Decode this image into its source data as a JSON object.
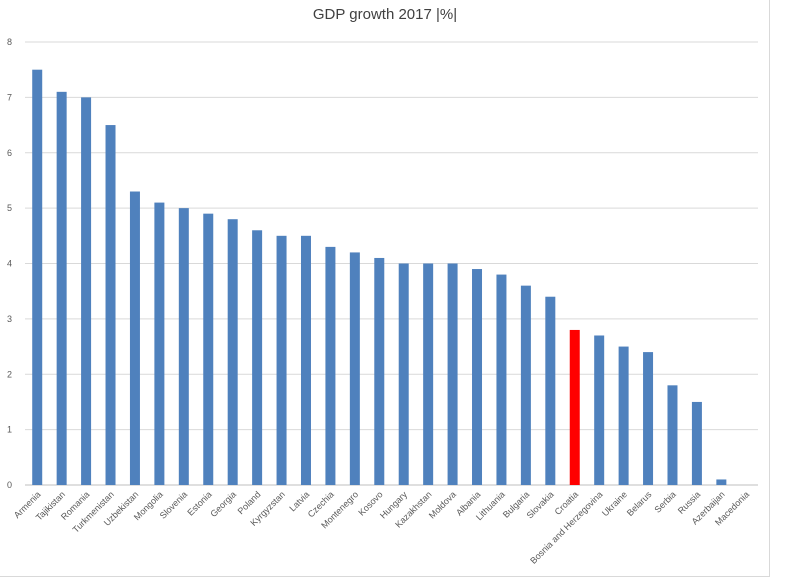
{
  "chart_data": {
    "type": "bar",
    "title": "GDP growth 2017 |%|",
    "xlabel": "",
    "ylabel": "",
    "ylim": [
      0,
      8
    ],
    "yticks": [
      0,
      1,
      2,
      3,
      4,
      5,
      6,
      7,
      8
    ],
    "grid": true,
    "legend": "none",
    "categories": [
      "Armenia",
      "Tajikistan",
      "Romania",
      "Turkmenistan",
      "Uzbekistan",
      "Mongolia",
      "Slovenia",
      "Estonia",
      "Georgia",
      "Poland",
      "Kyrgyzstan",
      "Latvia",
      "Czechia",
      "Montenegro",
      "Kosovo",
      "Hungary",
      "Kazakhstan",
      "Moldova",
      "Albania",
      "Lithuania",
      "Bulgaria",
      "Slovakia",
      "Croatia",
      "Bosnia and Herzegovina",
      "Ukraine",
      "Belarus",
      "Serbia",
      "Russia",
      "Azerbaijan",
      "Macedonia"
    ],
    "values": [
      7.5,
      7.1,
      7.0,
      6.5,
      5.3,
      5.1,
      5.0,
      4.9,
      4.8,
      4.6,
      4.5,
      4.5,
      4.3,
      4.2,
      4.1,
      4.0,
      4.0,
      4.0,
      3.9,
      3.8,
      3.6,
      3.4,
      2.8,
      2.7,
      2.5,
      2.4,
      1.8,
      1.5,
      0.1,
      0.0
    ],
    "highlight": "Croatia",
    "colors": {
      "bar": "#4f81bd",
      "highlight": "#ff0000",
      "grid": "#d9d9d9"
    }
  }
}
